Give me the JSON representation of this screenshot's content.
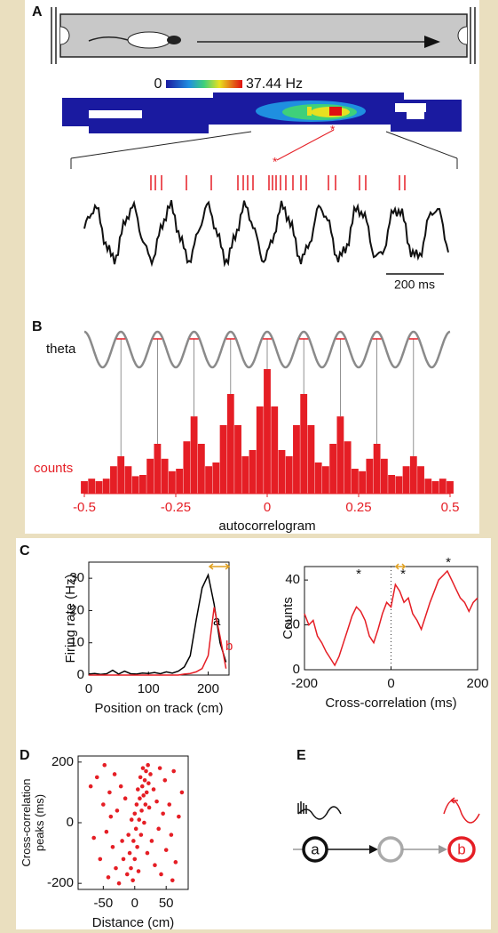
{
  "panel_labels": [
    "A",
    "B",
    "C",
    "D",
    "E"
  ],
  "panel_a": {
    "colorbar_min": "0",
    "colorbar_max": "37.44 Hz",
    "scale_bar": "200 ms"
  },
  "panel_e": {
    "node_labels": [
      "a",
      "b"
    ]
  },
  "chart_data": [
    {
      "type": "histogram",
      "wave_label": "theta",
      "ylabel": "counts",
      "xlabel": "autocorrelogram",
      "color": "#e51e25",
      "x": [
        -0.5,
        -0.48,
        -0.46,
        -0.44,
        -0.42,
        -0.4,
        -0.38,
        -0.36,
        -0.34,
        -0.32,
        -0.3,
        -0.28,
        -0.26,
        -0.24,
        -0.22,
        -0.2,
        -0.18,
        -0.16,
        -0.14,
        -0.12,
        -0.1,
        -0.08,
        -0.06,
        -0.04,
        -0.02,
        0,
        0.02,
        0.04,
        0.06,
        0.08,
        0.1,
        0.12,
        0.14,
        0.16,
        0.18,
        0.2,
        0.22,
        0.24,
        0.26,
        0.28,
        0.3,
        0.32,
        0.34,
        0.36,
        0.38,
        0.4,
        0.42,
        0.44,
        0.46,
        0.48,
        0.5
      ],
      "values": [
        10,
        12,
        10,
        12,
        22,
        30,
        22,
        14,
        15,
        28,
        40,
        28,
        18,
        20,
        42,
        62,
        40,
        22,
        25,
        55,
        80,
        55,
        30,
        35,
        70,
        100,
        70,
        35,
        30,
        55,
        80,
        55,
        25,
        22,
        40,
        62,
        42,
        20,
        18,
        28,
        40,
        28,
        15,
        14,
        22,
        30,
        22,
        12,
        10,
        12,
        10
      ],
      "xlim": [
        -0.5,
        0.5
      ],
      "xticks": [
        -0.5,
        -0.25,
        0,
        0.25,
        0.5
      ],
      "ylim": [
        0,
        100
      ],
      "peak_lags": [
        -0.4,
        -0.3,
        -0.2,
        -0.1,
        0,
        0.1,
        0.2,
        0.3,
        0.4
      ]
    },
    {
      "type": "line",
      "xlabel": "Position on track (cm)",
      "ylabel": "Firing rate (Hz)",
      "x": [
        0,
        10,
        20,
        30,
        40,
        50,
        60,
        70,
        80,
        90,
        100,
        110,
        120,
        130,
        140,
        150,
        160,
        170,
        180,
        190,
        200,
        210,
        220,
        230
      ],
      "series": [
        {
          "name": "a",
          "color": "#000000",
          "values": [
            0.3,
            0.5,
            0.2,
            0.4,
            1.5,
            0.3,
            1.2,
            0.4,
            0.3,
            0.6,
            0.5,
            0.8,
            0.4,
            1.0,
            0.6,
            1.2,
            2.5,
            6,
            17,
            27,
            31,
            22,
            10,
            4
          ]
        },
        {
          "name": "b",
          "color": "#e51e25",
          "values": [
            0,
            0,
            0,
            0,
            0,
            0,
            0,
            0,
            0,
            0,
            0,
            0,
            0,
            0,
            0,
            0,
            0.3,
            0.5,
            1,
            2,
            6,
            21,
            12,
            2
          ]
        }
      ],
      "xlim": [
        0,
        235
      ],
      "xticks": [
        0,
        100,
        200
      ],
      "ylim": [
        0,
        35
      ],
      "yticks": [
        0,
        10,
        20,
        30
      ]
    },
    {
      "type": "line",
      "xlabel": "Cross-correlation (ms)",
      "ylabel": "Counts",
      "color": "#e51e25",
      "x": [
        -200,
        -190,
        -180,
        -170,
        -160,
        -150,
        -140,
        -130,
        -120,
        -110,
        -100,
        -90,
        -80,
        -70,
        -60,
        -50,
        -40,
        -30,
        -20,
        -10,
        0,
        10,
        20,
        30,
        40,
        50,
        60,
        70,
        80,
        90,
        100,
        110,
        120,
        130,
        140,
        150,
        160,
        170,
        180,
        190,
        200
      ],
      "values": [
        25,
        20,
        22,
        15,
        12,
        8,
        5,
        2,
        6,
        12,
        18,
        24,
        28,
        26,
        22,
        15,
        12,
        18,
        25,
        30,
        28,
        38,
        35,
        30,
        32,
        25,
        22,
        18,
        24,
        30,
        35,
        40,
        42,
        44,
        40,
        36,
        32,
        30,
        26,
        30,
        32
      ],
      "annotations": [
        "*",
        "*",
        "*"
      ],
      "xlim": [
        -200,
        200
      ],
      "xticks": [
        -200,
        0,
        200
      ],
      "ylim": [
        0,
        46
      ],
      "yticks": [
        0,
        20,
        40
      ]
    },
    {
      "type": "scatter",
      "xlabel": "Distance (cm)",
      "ylabel": [
        "Cross-correlation",
        "peaks (ms)"
      ],
      "color": "#e51e25",
      "x": [
        -60,
        -55,
        -50,
        -48,
        -45,
        -42,
        -40,
        -38,
        -35,
        -32,
        -30,
        -28,
        -25,
        -22,
        -20,
        -18,
        -15,
        -12,
        -10,
        -8,
        -6,
        -5,
        -3,
        -2,
        0,
        0,
        2,
        3,
        4,
        5,
        6,
        7,
        8,
        9,
        10,
        11,
        12,
        13,
        14,
        15,
        16,
        17,
        18,
        19,
        20,
        21,
        22,
        23,
        25,
        27,
        30,
        32,
        35,
        38,
        40,
        42,
        45,
        48,
        50,
        55,
        58,
        62,
        65,
        70,
        75,
        -65,
        -70,
        60
      ],
      "values": [
        150,
        -120,
        60,
        190,
        -30,
        -180,
        100,
        20,
        -80,
        160,
        -150,
        40,
        -200,
        120,
        -60,
        -120,
        80,
        -170,
        -40,
        -100,
        -150,
        10,
        -190,
        -60,
        30,
        -120,
        -20,
        60,
        -80,
        110,
        -160,
        10,
        80,
        150,
        -40,
        40,
        120,
        180,
        90,
        0,
        140,
        60,
        170,
        100,
        -100,
        190,
        130,
        50,
        160,
        -60,
        110,
        -140,
        70,
        -20,
        180,
        -170,
        30,
        140,
        -90,
        60,
        -40,
        170,
        -130,
        20,
        100,
        -50,
        120,
        -190
      ],
      "xlim": [
        -90,
        85
      ],
      "xticks": [
        -50,
        0,
        50
      ],
      "ylim": [
        -220,
        220
      ],
      "yticks": [
        -200,
        0,
        200
      ]
    }
  ]
}
